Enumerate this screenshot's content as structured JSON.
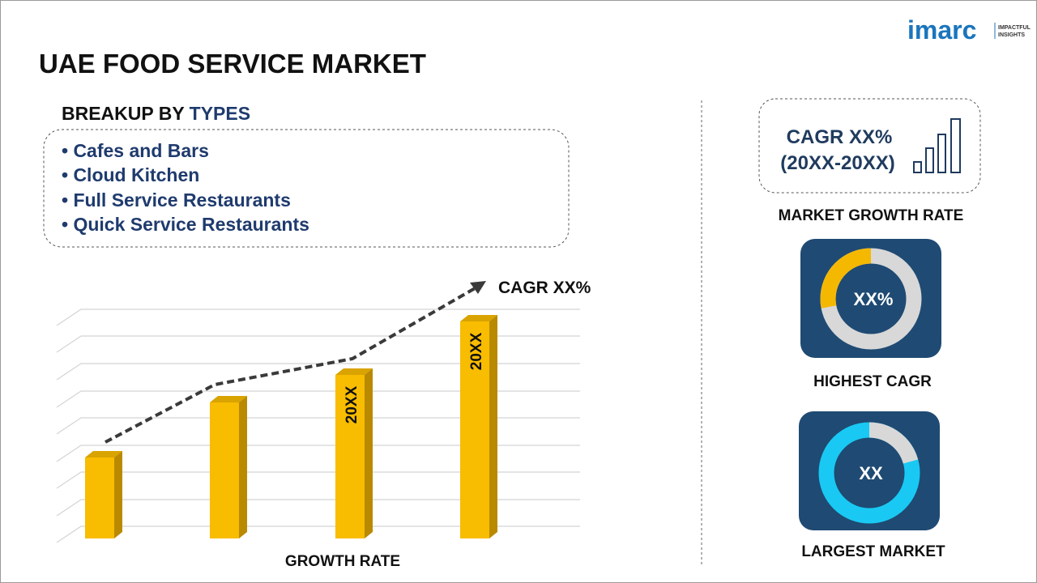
{
  "header": {
    "title": "UAE FOOD SERVICE MARKET",
    "logo": "imarc",
    "logo_tagline": [
      "IMPACTFUL",
      "INSIGHTS"
    ]
  },
  "breakup": {
    "heading_prefix": "BREAKUP BY",
    "heading_highlight": "TYPES",
    "items": [
      "• Cafes and Bars",
      "• Cloud Kitchen",
      "• Full Service Restaurants",
      "• Quick Service Restaurants"
    ]
  },
  "growth_chart": {
    "trend_label": "CAGR XX%",
    "bar_labels": [
      "20XX",
      "20XX"
    ],
    "axis_label": "GROWTH RATE"
  },
  "side": {
    "growth_box": {
      "line1": "CAGR XX%",
      "line2": "(20XX-20XX)",
      "caption": "MARKET GROWTH RATE"
    },
    "highest": {
      "value": "XX%",
      "caption": "HIGHEST CAGR"
    },
    "largest": {
      "value": "XX",
      "caption": "LARGEST MARKET"
    }
  }
}
